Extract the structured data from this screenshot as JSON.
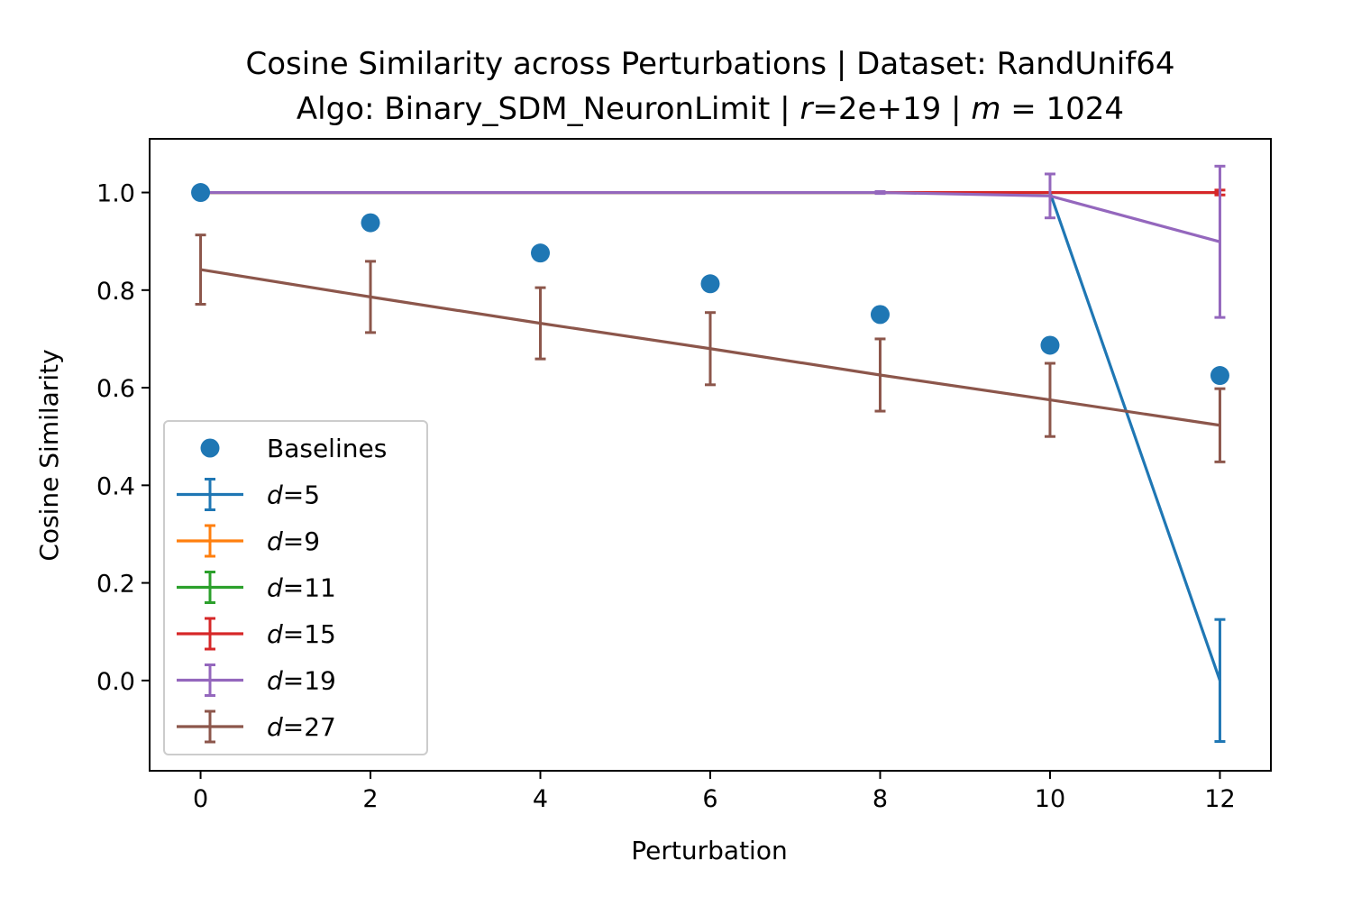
{
  "chart_data": {
    "type": "line",
    "title": {
      "line1": "Cosine Similarity across Perturbations | Dataset: RandUnif64",
      "line2_prefix": "Algo: Binary_SDM_NeuronLimit | ",
      "r_symbol": "r",
      "r_value": "=2e+19 | ",
      "m_symbol": "m",
      "m_value": " = 1024"
    },
    "xlabel": "Perturbation",
    "ylabel": "Cosine Similarity",
    "xlim": [
      -0.6,
      12.6
    ],
    "ylim": [
      -0.185,
      1.11
    ],
    "xticks": [
      0,
      2,
      4,
      6,
      8,
      10,
      12
    ],
    "xtick_labels": [
      "0",
      "2",
      "4",
      "6",
      "8",
      "10",
      "12"
    ],
    "yticks": [
      0.0,
      0.2,
      0.4,
      0.6,
      0.8,
      1.0
    ],
    "ytick_labels": [
      "0.0",
      "0.2",
      "0.4",
      "0.6",
      "0.8",
      "1.0"
    ],
    "grid": false,
    "legend_position": "lower-left",
    "x": [
      0,
      2,
      4,
      6,
      8,
      10,
      12
    ],
    "baselines": {
      "name": "Baselines",
      "color": "#1f77b4",
      "values": [
        1.0,
        0.938,
        0.876,
        0.813,
        0.75,
        0.687,
        0.625
      ]
    },
    "series": [
      {
        "name_var": "d",
        "name_val": "=5",
        "color": "#1f77b4",
        "values": [
          1.0,
          1.0,
          1.0,
          1.0,
          1.0,
          1.0,
          0.0
        ],
        "errors": [
          0,
          0,
          0,
          0,
          0,
          0,
          0.125
        ]
      },
      {
        "name_var": "d",
        "name_val": "=9",
        "color": "#ff7f0e",
        "values": [
          1.0,
          1.0,
          1.0,
          1.0,
          1.0,
          1.0,
          1.0
        ],
        "errors": [
          0,
          0,
          0,
          0,
          0,
          0,
          0
        ]
      },
      {
        "name_var": "d",
        "name_val": "=11",
        "color": "#2ca02c",
        "values": [
          1.0,
          1.0,
          1.0,
          1.0,
          1.0,
          1.0,
          1.0
        ],
        "errors": [
          0,
          0,
          0,
          0,
          0,
          0,
          0
        ]
      },
      {
        "name_var": "d",
        "name_val": "=15",
        "color": "#d62728",
        "values": [
          1.0,
          1.0,
          1.0,
          1.0,
          1.0,
          1.0,
          1.0
        ],
        "errors": [
          0,
          0,
          0,
          0,
          0,
          0,
          0.005
        ]
      },
      {
        "name_var": "d",
        "name_val": "=19",
        "color": "#9467bd",
        "values": [
          1.0,
          1.0,
          1.0,
          1.0,
          1.0,
          0.993,
          0.899
        ],
        "errors": [
          0,
          0,
          0,
          0,
          0.002,
          0.045,
          0.155
        ]
      },
      {
        "name_var": "d",
        "name_val": "=27",
        "color": "#8c564b",
        "values": [
          0.842,
          0.786,
          0.732,
          0.68,
          0.626,
          0.575,
          0.523
        ],
        "errors": [
          0.071,
          0.073,
          0.073,
          0.074,
          0.074,
          0.075,
          0.075
        ]
      }
    ]
  }
}
